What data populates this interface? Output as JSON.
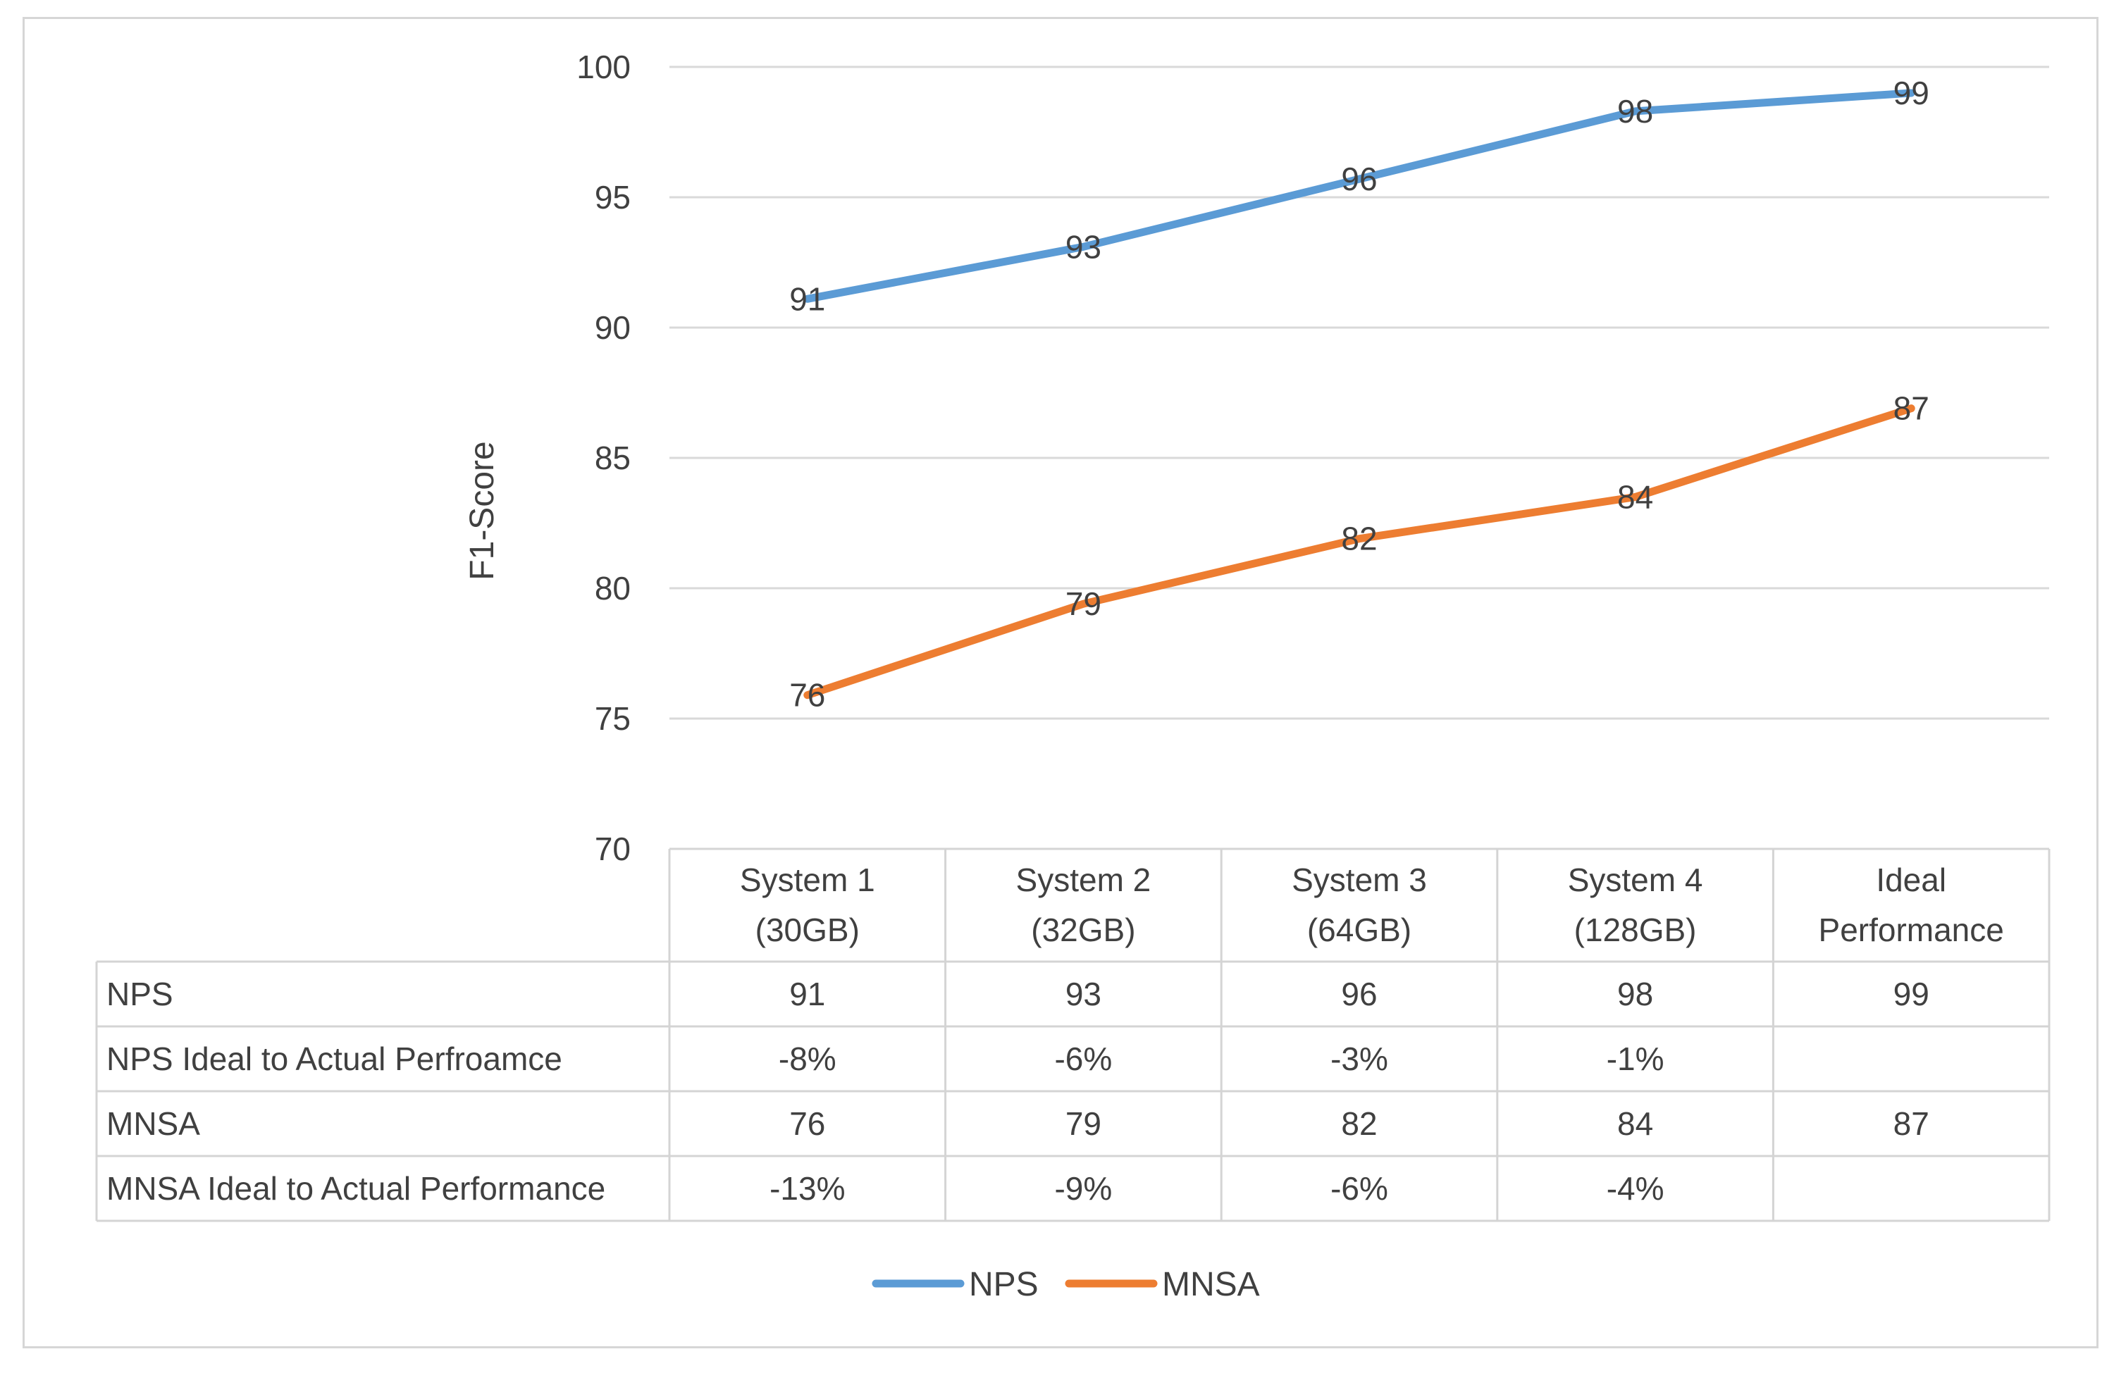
{
  "chart_data": {
    "type": "line",
    "ylabel": "F1-Score",
    "ylim": [
      70,
      100
    ],
    "ytick_step": 5,
    "grid": true,
    "legend_position": "bottom",
    "categories": [
      [
        "System 1",
        "(30GB)"
      ],
      [
        "System 2",
        "(32GB)"
      ],
      [
        "System 3",
        "(64GB)"
      ],
      [
        "System 4",
        "(128GB)"
      ],
      [
        "Ideal",
        "Performance"
      ]
    ],
    "series": [
      {
        "name": "NPS",
        "color": "#5b9bd5",
        "values": [
          91,
          93,
          96,
          98,
          99
        ],
        "points": [
          91.1,
          93.1,
          95.7,
          98.3,
          99.0
        ]
      },
      {
        "name": "MNSA",
        "color": "#ed7d31",
        "values": [
          76,
          79,
          82,
          84,
          87
        ],
        "points": [
          75.9,
          79.4,
          81.9,
          83.5,
          86.9
        ]
      }
    ],
    "table": {
      "rows": [
        {
          "label": "NPS",
          "values": [
            "91",
            "93",
            "96",
            "98",
            "99"
          ]
        },
        {
          "label": "NPS Ideal to Actual Perfroamce",
          "values": [
            "-8%",
            "-6%",
            "-3%",
            "-1%",
            ""
          ]
        },
        {
          "label": "MNSA",
          "values": [
            "76",
            "79",
            "82",
            "84",
            "87"
          ]
        },
        {
          "label": "MNSA Ideal to Actual Performance",
          "values": [
            "-13%",
            "-9%",
            "-6%",
            "-4%",
            ""
          ]
        }
      ]
    },
    "legend": [
      "NPS",
      "MNSA"
    ]
  }
}
